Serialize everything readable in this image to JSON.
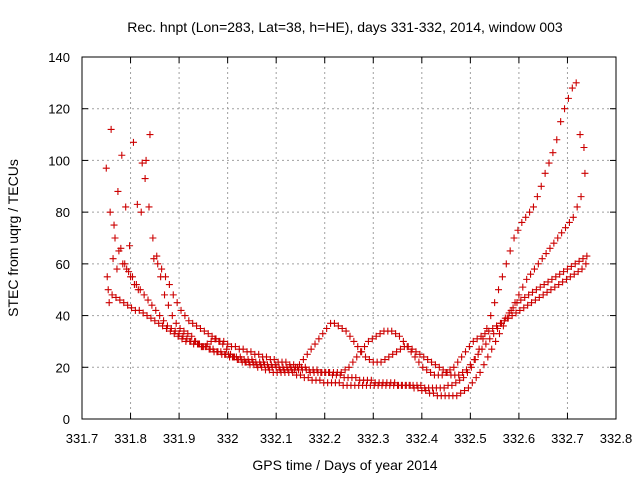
{
  "chart_data": {
    "type": "scatter",
    "title": "Rec. hnpt (Lon=283, Lat=38, h=HE), days 331-332, 2014, window 003",
    "xlabel": "GPS time / Days of year 2014",
    "ylabel": "STEC from uqrg / TECUs",
    "xlim": [
      331.7,
      332.8
    ],
    "ylim": [
      0,
      140
    ],
    "xticks": [
      "331.7",
      "331.8",
      "331.9",
      "332",
      "332.1",
      "332.2",
      "332.3",
      "332.4",
      "332.5",
      "332.6",
      "332.7",
      "332.8"
    ],
    "yticks": [
      "0",
      "20",
      "40",
      "60",
      "80",
      "100",
      "120",
      "140"
    ],
    "grid": true,
    "legend": "none",
    "marker": "+",
    "color": "#cc0000",
    "series": [
      {
        "x": [
          331.75,
          331.758,
          331.766,
          331.774,
          331.782,
          331.79,
          331.798,
          331.806,
          331.814,
          331.822,
          331.83,
          331.838,
          331.846,
          331.854,
          331.862,
          331.87,
          331.878,
          331.886,
          331.894,
          331.902,
          331.91,
          331.918,
          331.926,
          331.934,
          331.942,
          331.95,
          331.958,
          331.966,
          331.974,
          331.982,
          331.99,
          331.998,
          332.006,
          332.014,
          332.022,
          332.03,
          332.038,
          332.046,
          332.054,
          332.062,
          332.07,
          332.078,
          332.086,
          332.094,
          332.102,
          332.11,
          332.118,
          332.126,
          332.134,
          332.142,
          332.15,
          332.158,
          332.166,
          332.174,
          332.182,
          332.19,
          332.198,
          332.206,
          332.214,
          332.222,
          332.23,
          332.238,
          332.246,
          332.254,
          332.262,
          332.27,
          332.278,
          332.286,
          332.294,
          332.302,
          332.31,
          332.318,
          332.326,
          332.334,
          332.342,
          332.35,
          332.358,
          332.366,
          332.374,
          332.382,
          332.39,
          332.398,
          332.406,
          332.414,
          332.422,
          332.43,
          332.438,
          332.446,
          332.454,
          332.462,
          332.47,
          332.478,
          332.486,
          332.494,
          332.502,
          332.51,
          332.518,
          332.526,
          332.534,
          332.542,
          332.55,
          332.558,
          332.566,
          332.574,
          332.582,
          332.59,
          332.598,
          332.606,
          332.614,
          332.622,
          332.63,
          332.638,
          332.646,
          332.654,
          332.662,
          332.67,
          332.678,
          332.686,
          332.694,
          332.702,
          332.71,
          332.718,
          332.726,
          332.734
        ],
        "y": [
          97,
          80,
          75,
          88,
          102,
          82,
          67,
          107,
          83,
          80,
          93,
          82,
          70,
          63,
          55,
          48,
          44,
          40,
          37,
          35,
          34,
          33,
          32,
          30,
          29,
          28,
          29,
          30,
          31,
          30,
          29,
          27,
          25,
          24,
          23,
          22,
          22,
          21,
          21,
          20,
          20,
          19,
          19,
          18,
          18,
          18,
          18,
          18,
          18,
          17,
          17,
          16,
          16,
          15,
          15,
          15,
          14,
          14,
          14,
          14,
          14,
          13,
          13,
          13,
          13,
          13,
          13,
          13,
          13,
          13,
          13,
          13,
          13,
          13,
          13,
          13,
          13,
          13,
          13,
          13,
          13,
          13,
          12,
          12,
          12,
          12,
          12,
          12,
          13,
          13,
          14,
          15,
          16,
          18,
          20,
          23,
          27,
          31,
          35,
          40,
          45,
          50,
          55,
          60,
          65,
          70,
          73,
          76,
          78,
          80,
          82,
          86,
          90,
          95,
          99,
          103,
          108,
          115,
          120,
          124,
          128,
          130,
          110,
          105
        ]
      },
      {
        "x": [
          331.752,
          331.76,
          331.768,
          331.776,
          331.784,
          331.792,
          331.8,
          331.808,
          331.816,
          331.824,
          331.832,
          331.84,
          331.848,
          331.856,
          331.864,
          331.872,
          331.88,
          331.888,
          331.896,
          331.904,
          331.912,
          331.92,
          331.928,
          331.936,
          331.944,
          331.952,
          331.96,
          331.968,
          331.976,
          331.984,
          331.992,
          332.0,
          332.008,
          332.016,
          332.024,
          332.032,
          332.04,
          332.048,
          332.056,
          332.064,
          332.072,
          332.08,
          332.088,
          332.096,
          332.104,
          332.112,
          332.12,
          332.128,
          332.136,
          332.144,
          332.152,
          332.16,
          332.168,
          332.176,
          332.184,
          332.192,
          332.2,
          332.208,
          332.216,
          332.224,
          332.232,
          332.24,
          332.248,
          332.256,
          332.264,
          332.272,
          332.28,
          332.288,
          332.296,
          332.304,
          332.312,
          332.32,
          332.328,
          332.336,
          332.344,
          332.352,
          332.36,
          332.368,
          332.376,
          332.384,
          332.392,
          332.4,
          332.408,
          332.416,
          332.424,
          332.432,
          332.44,
          332.448,
          332.456,
          332.464,
          332.472,
          332.48,
          332.488,
          332.496,
          332.504,
          332.512,
          332.52,
          332.528,
          332.536,
          332.544,
          332.552,
          332.56,
          332.568,
          332.576,
          332.584,
          332.592,
          332.6,
          332.608,
          332.616,
          332.624,
          332.632,
          332.64,
          332.648,
          332.656,
          332.664,
          332.672,
          332.68,
          332.688,
          332.696,
          332.704,
          332.712,
          332.72,
          332.728,
          332.736
        ],
        "y": [
          55,
          112,
          70,
          65,
          60,
          58,
          55,
          52,
          50,
          99,
          100,
          110,
          62,
          60,
          58,
          55,
          52,
          48,
          45,
          42,
          40,
          38,
          37,
          36,
          35,
          34,
          33,
          32,
          31,
          30,
          30,
          29,
          28,
          28,
          27,
          27,
          26,
          26,
          25,
          25,
          24,
          24,
          23,
          23,
          22,
          22,
          22,
          21,
          21,
          20,
          20,
          20,
          19,
          19,
          19,
          18,
          18,
          18,
          17,
          17,
          17,
          16,
          16,
          16,
          16,
          15,
          15,
          15,
          15,
          14,
          14,
          14,
          14,
          14,
          14,
          13,
          13,
          13,
          13,
          12,
          12,
          11,
          11,
          10,
          10,
          9,
          9,
          9,
          9,
          9,
          9,
          10,
          11,
          12,
          14,
          16,
          18,
          21,
          24,
          27,
          30,
          33,
          36,
          39,
          42,
          45,
          48,
          51,
          54,
          56,
          58,
          60,
          62,
          64,
          66,
          68,
          70,
          72,
          74,
          76,
          78,
          82,
          86,
          95
        ]
      },
      {
        "x": [
          331.754,
          331.762,
          331.77,
          331.778,
          331.786,
          331.794,
          331.802,
          331.81,
          331.818,
          331.826,
          331.834,
          331.842,
          331.85,
          331.858,
          331.866,
          331.874,
          331.882,
          331.89,
          331.898,
          331.906,
          331.914,
          331.922,
          331.93,
          331.938,
          331.946,
          331.954,
          331.962,
          331.97,
          331.978,
          331.986,
          331.994,
          332.002,
          332.01,
          332.018,
          332.026,
          332.034,
          332.042,
          332.05,
          332.058,
          332.066,
          332.074,
          332.082,
          332.09,
          332.098,
          332.106,
          332.114,
          332.122,
          332.13,
          332.138,
          332.146,
          332.154,
          332.162,
          332.17,
          332.178,
          332.186,
          332.194,
          332.202,
          332.21,
          332.218,
          332.226,
          332.234,
          332.242,
          332.25,
          332.258,
          332.266,
          332.274,
          332.282,
          332.29,
          332.298,
          332.306,
          332.314,
          332.322,
          332.33,
          332.338,
          332.346,
          332.354,
          332.362,
          332.37,
          332.378,
          332.386,
          332.394,
          332.402,
          332.41,
          332.418,
          332.426,
          332.434,
          332.442,
          332.45,
          332.458,
          332.466,
          332.474,
          332.482,
          332.49,
          332.498,
          332.506,
          332.514,
          332.522,
          332.53,
          332.538,
          332.546,
          332.554,
          332.562,
          332.57,
          332.578,
          332.586,
          332.594,
          332.602,
          332.61,
          332.618,
          332.626,
          332.634,
          332.642,
          332.65,
          332.658,
          332.666,
          332.674,
          332.682,
          332.69,
          332.698,
          332.706,
          332.714,
          332.722,
          332.73,
          332.738
        ],
        "y": [
          50,
          48,
          47,
          46,
          45,
          44,
          43,
          42,
          42,
          41,
          40,
          39,
          38,
          37,
          36,
          35,
          34,
          33,
          32,
          31,
          30,
          30,
          29,
          29,
          28,
          28,
          27,
          27,
          26,
          26,
          25,
          25,
          24,
          24,
          24,
          23,
          23,
          23,
          22,
          22,
          22,
          21,
          21,
          21,
          20,
          20,
          20,
          20,
          19,
          19,
          19,
          19,
          18,
          18,
          18,
          18,
          18,
          18,
          18,
          18,
          18,
          19,
          20,
          22,
          24,
          26,
          28,
          30,
          31,
          32,
          33,
          34,
          34,
          34,
          33,
          32,
          30,
          28,
          26,
          24,
          22,
          20,
          19,
          18,
          17,
          17,
          17,
          18,
          19,
          20,
          22,
          24,
          26,
          28,
          30,
          31,
          32,
          33,
          34,
          35,
          36,
          37,
          38,
          39,
          40,
          41,
          42,
          43,
          44,
          45,
          46,
          47,
          48,
          49,
          50,
          51,
          52,
          53,
          54,
          55,
          56,
          57,
          58,
          60
        ]
      },
      {
        "x": [
          331.756,
          331.764,
          331.772,
          331.78,
          331.788,
          331.796,
          331.804,
          331.812,
          331.82,
          331.828,
          331.836,
          331.844,
          331.852,
          331.86,
          331.868,
          331.876,
          331.884,
          331.892,
          331.9,
          331.908,
          331.916,
          331.924,
          331.932,
          331.94,
          331.948,
          331.956,
          331.964,
          331.972,
          331.98,
          331.988,
          331.996,
          332.004,
          332.012,
          332.02,
          332.028,
          332.036,
          332.044,
          332.052,
          332.06,
          332.068,
          332.076,
          332.084,
          332.092,
          332.1,
          332.108,
          332.116,
          332.124,
          332.132,
          332.14,
          332.148,
          332.156,
          332.164,
          332.172,
          332.18,
          332.188,
          332.196,
          332.204,
          332.212,
          332.22,
          332.228,
          332.236,
          332.244,
          332.252,
          332.26,
          332.268,
          332.276,
          332.284,
          332.292,
          332.3,
          332.308,
          332.316,
          332.324,
          332.332,
          332.34,
          332.348,
          332.356,
          332.364,
          332.372,
          332.38,
          332.388,
          332.396,
          332.404,
          332.412,
          332.42,
          332.428,
          332.436,
          332.444,
          332.452,
          332.46,
          332.468,
          332.476,
          332.484,
          332.492,
          332.5,
          332.508,
          332.516,
          332.524,
          332.532,
          332.54,
          332.548,
          332.556,
          332.564,
          332.572,
          332.58,
          332.588,
          332.596,
          332.604,
          332.612,
          332.62,
          332.628,
          332.636,
          332.644,
          332.652,
          332.66,
          332.668,
          332.676,
          332.684,
          332.692,
          332.7,
          332.708,
          332.716,
          332.724,
          332.732,
          332.74
        ],
        "y": [
          45,
          62,
          58,
          66,
          60,
          57,
          55,
          52,
          50,
          48,
          46,
          44,
          42,
          40,
          38,
          36,
          35,
          34,
          33,
          32,
          31,
          30,
          30,
          29,
          28,
          28,
          27,
          26,
          26,
          25,
          25,
          24,
          24,
          23,
          23,
          22,
          22,
          22,
          21,
          21,
          21,
          20,
          20,
          20,
          19,
          19,
          19,
          19,
          20,
          21,
          23,
          25,
          27,
          29,
          31,
          33,
          35,
          37,
          37,
          36,
          35,
          34,
          32,
          30,
          28,
          26,
          24,
          23,
          22,
          22,
          22,
          23,
          24,
          25,
          26,
          27,
          28,
          28,
          27,
          26,
          25,
          24,
          23,
          22,
          21,
          20,
          19,
          18,
          17,
          17,
          17,
          18,
          19,
          21,
          23,
          25,
          27,
          29,
          31,
          33,
          35,
          37,
          39,
          41,
          43,
          45,
          46,
          47,
          48,
          49,
          50,
          51,
          52,
          53,
          54,
          55,
          56,
          57,
          58,
          59,
          60,
          61,
          62,
          63
        ]
      }
    ]
  }
}
